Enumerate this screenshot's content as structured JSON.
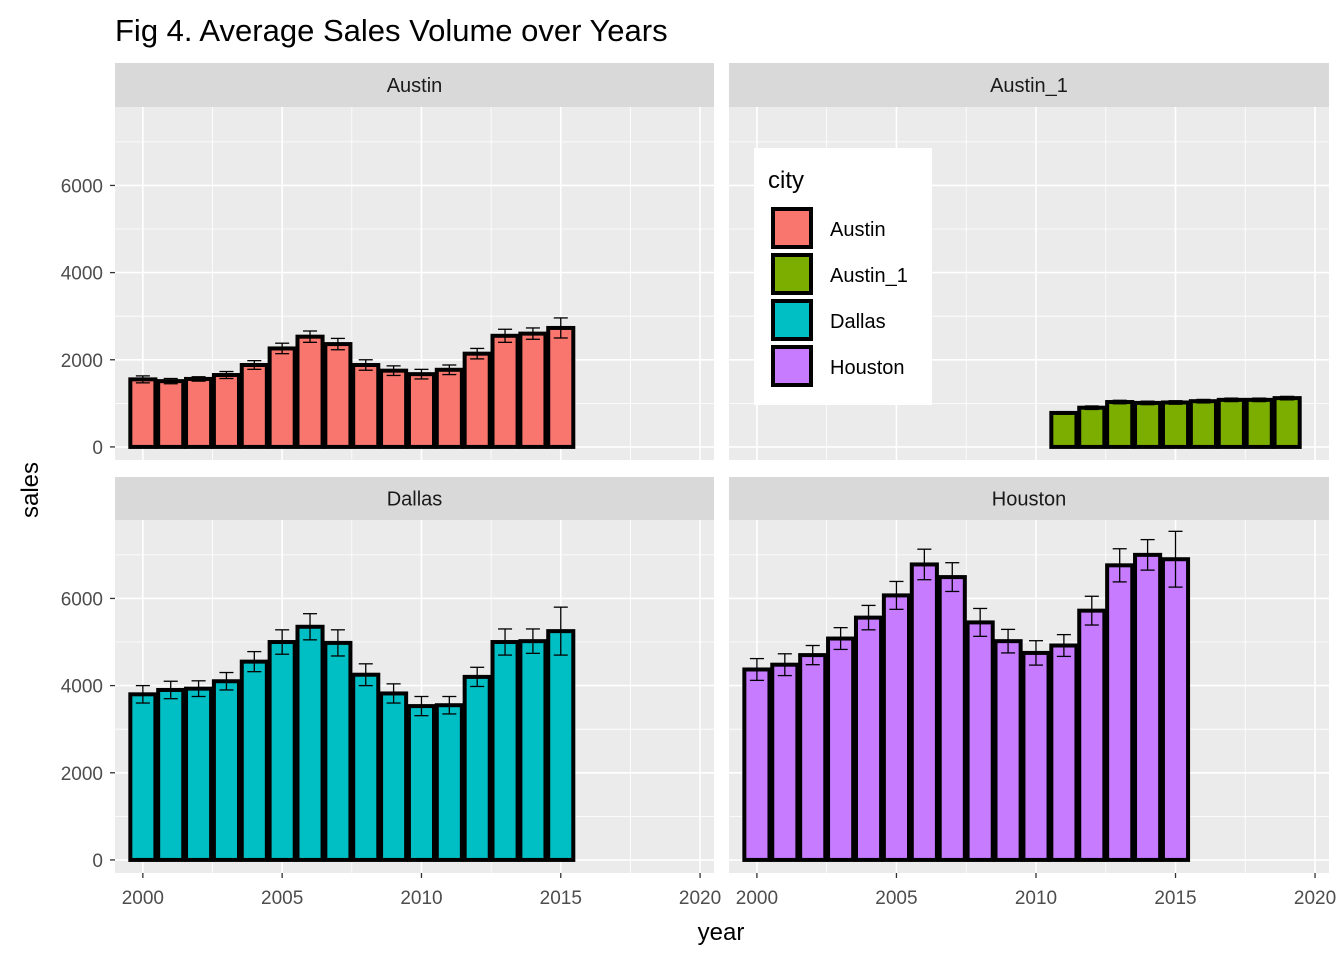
{
  "chart_data": {
    "type": "bar",
    "title": "Fig 4. Average Sales Volume over Years",
    "xlabel": "year",
    "ylabel": "sales",
    "xlim": [
      1999,
      2020.5
    ],
    "ylim": [
      -300,
      7800
    ],
    "x_ticks": [
      2000,
      2005,
      2010,
      2015,
      2020
    ],
    "y_ticks": [
      0,
      2000,
      4000,
      6000
    ],
    "grid": true,
    "error_bars": true,
    "legend": {
      "title": "city",
      "placement": "inside top-right panel",
      "entries": [
        {
          "label": "Austin",
          "color": "#F8766D"
        },
        {
          "label": "Austin_1",
          "color": "#7CAE00"
        },
        {
          "label": "Dallas",
          "color": "#00BFC4"
        },
        {
          "label": "Houston",
          "color": "#C77CFF"
        }
      ]
    },
    "panels": [
      {
        "name": "Austin",
        "color": "#F8766D",
        "x": [
          2000,
          2001,
          2002,
          2003,
          2004,
          2005,
          2006,
          2007,
          2008,
          2009,
          2010,
          2011,
          2012,
          2013,
          2014,
          2015
        ],
        "values": [
          1550,
          1510,
          1560,
          1650,
          1880,
          2260,
          2530,
          2360,
          1880,
          1750,
          1670,
          1770,
          2140,
          2550,
          2600,
          2730
        ],
        "errors": [
          80,
          60,
          50,
          80,
          100,
          120,
          130,
          130,
          120,
          110,
          110,
          110,
          120,
          150,
          130,
          230
        ]
      },
      {
        "name": "Austin_1",
        "color": "#7CAE00",
        "x": [
          2011,
          2012,
          2013,
          2014,
          2015,
          2016,
          2017,
          2018,
          2019
        ],
        "values": [
          780,
          900,
          1030,
          1010,
          1020,
          1050,
          1080,
          1080,
          1120
        ],
        "errors": [
          30,
          40,
          40,
          40,
          40,
          40,
          40,
          40,
          40
        ]
      },
      {
        "name": "Dallas",
        "color": "#00BFC4",
        "x": [
          2000,
          2001,
          2002,
          2003,
          2004,
          2005,
          2006,
          2007,
          2008,
          2009,
          2010,
          2011,
          2012,
          2013,
          2014,
          2015
        ],
        "values": [
          3800,
          3900,
          3930,
          4100,
          4550,
          5000,
          5350,
          4980,
          4250,
          3820,
          3530,
          3550,
          4200,
          5000,
          5020,
          5250
        ],
        "errors": [
          200,
          200,
          180,
          200,
          230,
          280,
          300,
          300,
          250,
          220,
          220,
          200,
          220,
          300,
          280,
          550
        ]
      },
      {
        "name": "Houston",
        "color": "#C77CFF",
        "x": [
          2000,
          2001,
          2002,
          2003,
          2004,
          2005,
          2006,
          2007,
          2008,
          2009,
          2010,
          2011,
          2012,
          2013,
          2014,
          2015
        ],
        "values": [
          4370,
          4480,
          4700,
          5080,
          5560,
          6070,
          6780,
          6490,
          5450,
          5020,
          4750,
          4920,
          5720,
          6760,
          7000,
          6900
        ],
        "errors": [
          250,
          250,
          220,
          250,
          280,
          320,
          350,
          330,
          320,
          270,
          280,
          250,
          330,
          380,
          350,
          640
        ]
      }
    ]
  }
}
